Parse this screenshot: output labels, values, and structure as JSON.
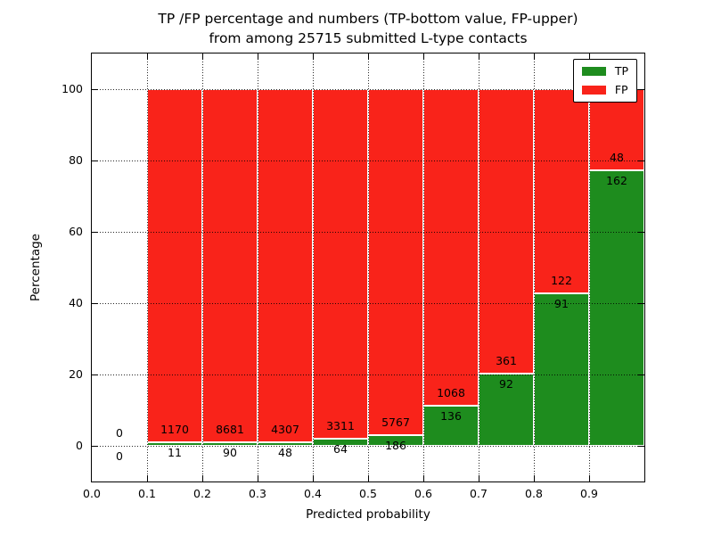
{
  "title": {
    "line1": "TP /FP percentage and numbers (TP-bottom value, FP-upper)",
    "line2": "from among 25715 submitted L-type contacts"
  },
  "axes": {
    "xlabel": "Predicted probability",
    "ylabel": "Percentage",
    "x_tick_labels": [
      "0.0",
      "0.1",
      "0.2",
      "0.3",
      "0.4",
      "0.5",
      "0.6",
      "0.7",
      "0.8",
      "0.9"
    ],
    "y_tick_values": [
      0,
      20,
      40,
      60,
      80,
      100
    ]
  },
  "legend": {
    "position": "upper right",
    "entries": [
      {
        "label": "TP",
        "color": "#1e8c1e"
      },
      {
        "label": "FP",
        "color": "#f9231a"
      }
    ]
  },
  "colors": {
    "tp": "#1e8c1e",
    "fp": "#f9231a",
    "bar_edge": "#ffffff",
    "grid": "#000000",
    "background": "#ffffff",
    "text": "#000000"
  },
  "chart_data": {
    "type": "bar",
    "stacked": true,
    "normalized_each_bar_to": 100,
    "title": "TP /FP percentage and numbers (TP-bottom value, FP-upper) from among 25715 submitted L-type contacts",
    "xlabel": "Predicted probability",
    "ylabel": "Percentage",
    "xlim": [
      0.0,
      1.0
    ],
    "ylim": [
      -10,
      110
    ],
    "grid": "dotted",
    "bin_width": 0.1,
    "total_submitted": 25715,
    "series": [
      {
        "name": "TP",
        "role": "bottom",
        "counts": [
          0,
          11,
          90,
          48,
          64,
          186,
          136,
          92,
          91,
          162
        ]
      },
      {
        "name": "FP",
        "role": "top",
        "counts": [
          0,
          1170,
          8681,
          4307,
          3311,
          5767,
          1068,
          361,
          122,
          48
        ]
      }
    ],
    "bins": [
      {
        "x_start": 0.0,
        "x_end": 0.1,
        "tp_count": 0,
        "fp_count": 0,
        "tp_pct": 0
      },
      {
        "x_start": 0.1,
        "x_end": 0.2,
        "tp_count": 11,
        "fp_count": 1170,
        "tp_pct": 0.93
      },
      {
        "x_start": 0.2,
        "x_end": 0.3,
        "tp_count": 90,
        "fp_count": 8681,
        "tp_pct": 1.03
      },
      {
        "x_start": 0.3,
        "x_end": 0.4,
        "tp_count": 48,
        "fp_count": 4307,
        "tp_pct": 1.1
      },
      {
        "x_start": 0.4,
        "x_end": 0.5,
        "tp_count": 64,
        "fp_count": 3311,
        "tp_pct": 1.9
      },
      {
        "x_start": 0.5,
        "x_end": 0.6,
        "tp_count": 186,
        "fp_count": 5767,
        "tp_pct": 3.12
      },
      {
        "x_start": 0.6,
        "x_end": 0.7,
        "tp_count": 136,
        "fp_count": 1068,
        "tp_pct": 11.3
      },
      {
        "x_start": 0.7,
        "x_end": 0.8,
        "tp_count": 92,
        "fp_count": 361,
        "tp_pct": 20.31
      },
      {
        "x_start": 0.8,
        "x_end": 0.9,
        "tp_count": 91,
        "fp_count": 122,
        "tp_pct": 42.72
      },
      {
        "x_start": 0.9,
        "x_end": 1.0,
        "tp_count": 162,
        "fp_count": 48,
        "tp_pct": 77.14
      }
    ]
  }
}
